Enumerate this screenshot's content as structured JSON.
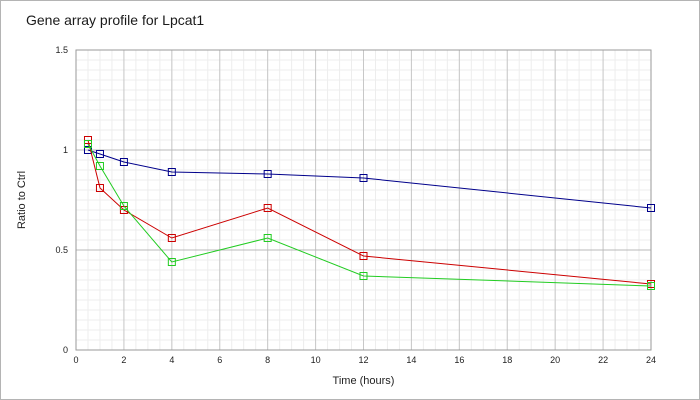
{
  "chart_data": {
    "type": "line",
    "title": "Gene array profile for Lpcat1",
    "xlabel": "Time (hours)",
    "ylabel": "Ratio to Ctrl",
    "xlim": [
      0,
      24
    ],
    "ylim": [
      0,
      1.5
    ],
    "x_ticks": [
      "0",
      "2",
      "4",
      "6",
      "8",
      "10",
      "12",
      "14",
      "16",
      "18",
      "20",
      "22",
      "24"
    ],
    "y_ticks": [
      "0",
      "0.5",
      "1",
      "1.5"
    ],
    "grid": true,
    "legend": "none",
    "series": [
      {
        "color": "#00008b",
        "marker": "square",
        "points": [
          [
            0.5,
            1.0
          ],
          [
            1,
            0.98
          ],
          [
            2,
            0.94
          ],
          [
            4,
            0.89
          ],
          [
            8,
            0.88
          ],
          [
            12,
            0.86
          ],
          [
            24,
            0.71
          ]
        ]
      },
      {
        "color": "#cc0000",
        "marker": "square",
        "points": [
          [
            0.5,
            1.05
          ],
          [
            1,
            0.81
          ],
          [
            2,
            0.7
          ],
          [
            4,
            0.56
          ],
          [
            8,
            0.71
          ],
          [
            12,
            0.47
          ],
          [
            24,
            0.33
          ]
        ]
      },
      {
        "color": "#22cc22",
        "marker": "square",
        "points": [
          [
            0.5,
            1.03
          ],
          [
            1,
            0.92
          ],
          [
            2,
            0.72
          ],
          [
            4,
            0.44
          ],
          [
            8,
            0.56
          ],
          [
            12,
            0.37
          ],
          [
            24,
            0.32
          ]
        ]
      }
    ]
  }
}
